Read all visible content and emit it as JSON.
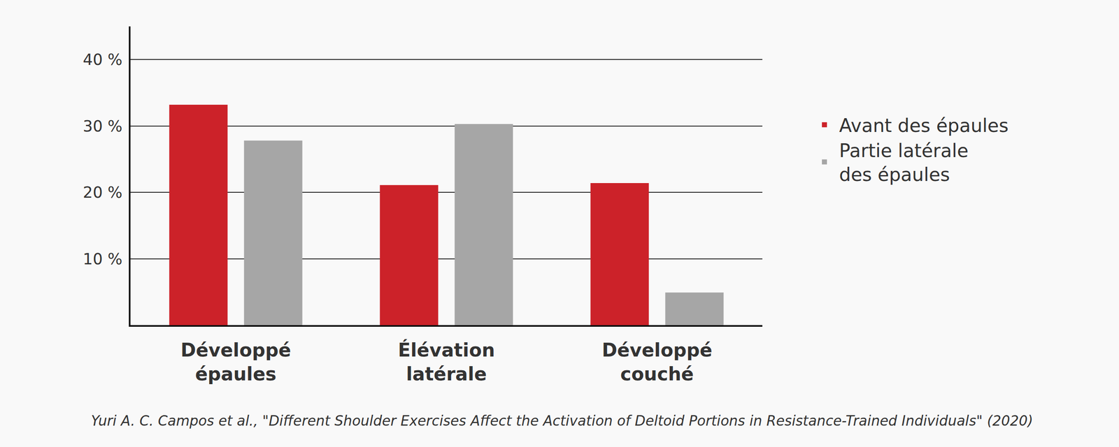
{
  "chart_data": {
    "type": "bar",
    "categories": [
      "Développé\népaules",
      "Élévation\nlatérale",
      "Développé\ncouché"
    ],
    "series": [
      {
        "name": "Avant des épaules",
        "color": "#cc2229",
        "values": [
          33.2,
          21.1,
          21.4
        ]
      },
      {
        "name": "Partie latérale\ndes épaules",
        "color": "#a6a6a6",
        "values": [
          27.8,
          30.3,
          4.9
        ]
      }
    ],
    "ylim": [
      0,
      45
    ],
    "yticks": [
      {
        "value": 10,
        "label": "10 %"
      },
      {
        "value": 20,
        "label": "20 %"
      },
      {
        "value": 30,
        "label": "30 %"
      },
      {
        "value": 40,
        "label": "40 %"
      }
    ],
    "grid": true,
    "legend": "right",
    "data_labels": false,
    "annotations": [
      "Yuri A. C. Campos et al., \"Different Shoulder Exercises Affect the Activation of Deltoid Portions in Resistance-Trained Individuals\" (2020)"
    ]
  }
}
